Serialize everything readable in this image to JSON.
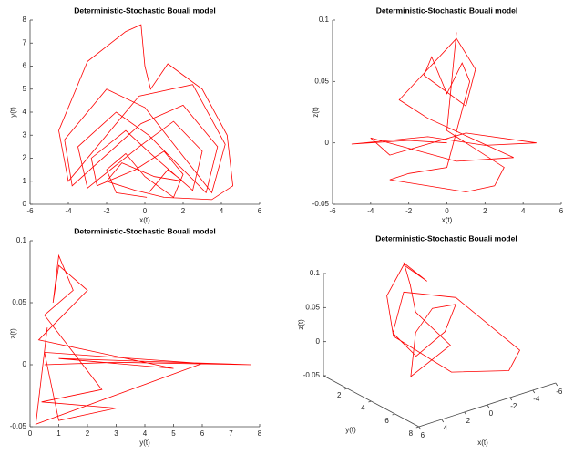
{
  "chart_data": [
    {
      "type": "line",
      "title": "Deterministic-Stochastic Bouali model",
      "xlabel": "x(t)",
      "ylabel": "y(t)",
      "xlim": [
        -6,
        6
      ],
      "xticks": [
        -6,
        -4,
        -2,
        0,
        2,
        4,
        6
      ],
      "ylim": [
        0,
        8
      ],
      "yticks": [
        0,
        1,
        2,
        3,
        4,
        5,
        6,
        7,
        8
      ],
      "series": [
        {
          "color": "#ff0000",
          "x": [
            0.1,
            -1.5,
            -2,
            -1,
            0,
            1.5,
            2,
            1,
            -0.5,
            -2.5,
            -2.8,
            -1,
            0.3,
            2.5,
            3,
            1.5,
            -0.3,
            -3,
            -3.5,
            -1.5,
            0.2,
            3.2,
            3.8,
            2,
            -0.2,
            -3.8,
            -4.2,
            -2,
            0,
            3.5,
            4.2,
            2.5,
            -0.3,
            -4,
            -4.5,
            -3,
            -1,
            -0.2,
            0,
            0.3,
            1.2,
            3,
            4.3,
            4.6,
            3.5,
            1,
            -0.5,
            -2,
            -1.2,
            0.5,
            2,
            1.2,
            0.2
          ],
          "values": [
            0.3,
            0.5,
            1.5,
            2.2,
            1.2,
            0.3,
            1.3,
            2.3,
            1.5,
            0.8,
            2,
            3.2,
            2.2,
            0.6,
            2.3,
            3.6,
            2.5,
            0.7,
            2.5,
            4,
            3,
            0.5,
            2.5,
            4.3,
            3.5,
            0.8,
            2.8,
            5,
            4.2,
            0.5,
            2.6,
            5.2,
            4.7,
            1,
            3.2,
            6.2,
            7.5,
            7.8,
            6,
            5,
            6.1,
            5,
            3,
            0.8,
            0.2,
            0.3,
            0.6,
            1,
            1.8,
            1.2,
            1,
            1.5,
            0.5
          ]
        }
      ]
    },
    {
      "type": "line",
      "title": "Deterministic-Stochastic Bouali model",
      "xlabel": "x(t)",
      "ylabel": "z(t)",
      "xlim": [
        -6,
        6
      ],
      "xticks": [
        -6,
        -4,
        -2,
        0,
        2,
        4,
        6
      ],
      "ylim": [
        -0.05,
        0.1
      ],
      "yticks": [
        -0.05,
        0,
        0.05,
        0.1
      ],
      "series": [
        {
          "color": "#ff0000",
          "x": [
            0,
            -2,
            -5,
            -1,
            2,
            4.7,
            1,
            -3,
            -4,
            0.5,
            3.5,
            -1,
            -2.5,
            -1,
            0.5,
            1.5,
            1,
            -1.2,
            -0.8,
            0,
            0.8,
            1.2,
            0,
            -2,
            -3,
            1,
            2.5,
            3,
            0,
            0.5
          ],
          "values": [
            0,
            0.002,
            -0.001,
            0.005,
            -0.002,
            0,
            0.008,
            -0.01,
            0.004,
            -0.015,
            -0.012,
            0.02,
            0.035,
            0.06,
            0.085,
            0.06,
            0.03,
            0.055,
            0.07,
            0.04,
            0.065,
            0.05,
            -0.02,
            -0.025,
            -0.03,
            -0.04,
            -0.035,
            -0.02,
            0.01,
            0.09
          ]
        }
      ]
    },
    {
      "type": "line",
      "title": "Deterministic-Stochastic Bouali model",
      "xlabel": "y(t)",
      "ylabel": "z(t)",
      "xlim": [
        0,
        8
      ],
      "xticks": [
        0,
        1,
        2,
        3,
        4,
        5,
        6,
        7,
        8
      ],
      "ylim": [
        -0.05,
        0.1
      ],
      "yticks": [
        -0.05,
        0,
        0.05,
        0.1
      ],
      "series": [
        {
          "color": "#ff0000",
          "x": [
            0.5,
            3,
            7.7,
            1,
            5,
            0.3,
            2,
            1,
            0.8,
            1,
            1.5,
            0.5,
            2.5,
            0.4,
            3,
            1,
            0.5,
            6,
            0.2,
            0.6
          ],
          "values": [
            0,
            0.002,
            0,
            0.005,
            -0.003,
            0.02,
            0.06,
            0.08,
            0.05,
            0.088,
            0.06,
            0.04,
            -0.02,
            -0.03,
            -0.035,
            -0.045,
            0.01,
            0.001,
            -0.048,
            0.03
          ]
        }
      ]
    },
    {
      "type": "line3d",
      "title": "Deterministic-Stochastic Bouali model",
      "xlabel": "x(t)",
      "ylabel": "y(t)",
      "zlabel": "z(t)",
      "xlim": [
        -6,
        6
      ],
      "xticks": [
        -6,
        -4,
        -2,
        0,
        2,
        4,
        6
      ],
      "ylim": [
        0,
        8
      ],
      "yticks": [
        2,
        4,
        6,
        8
      ],
      "zlim": [
        -0.05,
        0.1
      ],
      "zticks": [
        -0.05,
        0,
        0.05,
        0.1
      ],
      "series": [
        {
          "color": "#ff0000",
          "x": [
            0,
            -2,
            -3,
            -1,
            1,
            2,
            0,
            -3,
            -6,
            -4,
            0,
            3,
            2,
            0,
            -1,
            0.5,
            1,
            0,
            -2,
            2,
            0
          ],
          "y": [
            2,
            1.5,
            2.5,
            3.5,
            3,
            2,
            1,
            2.5,
            5,
            6,
            5,
            3,
            1.5,
            1,
            2,
            1.5,
            2.5,
            2,
            3,
            3.5,
            2
          ],
          "z": [
            0,
            0.02,
            0.03,
            0.01,
            -0.02,
            0.01,
            0.05,
            0.04,
            -0.03,
            -0.04,
            -0.03,
            0.02,
            0.06,
            0.09,
            0.07,
            0.1,
            0.08,
            0.03,
            -0.02,
            -0.04,
            0
          ]
        }
      ]
    }
  ]
}
